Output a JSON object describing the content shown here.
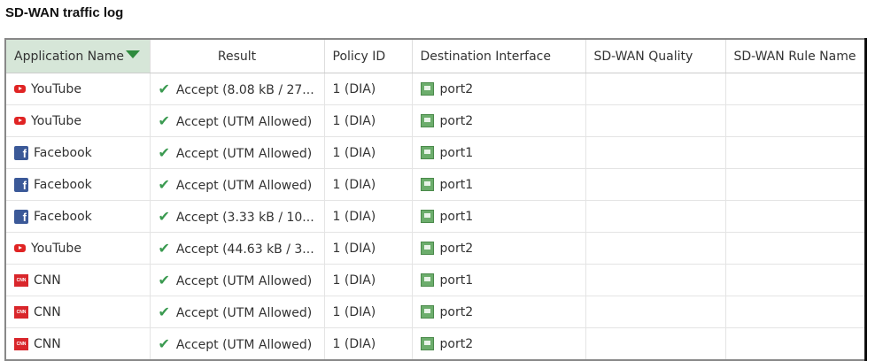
{
  "title": "SD-WAN traffic log",
  "columns": [
    "Application Name",
    "Result",
    "Policy ID",
    "Destination Interface",
    "SD-WAN Quality",
    "SD-WAN Rule Name"
  ],
  "rows": [
    {
      "app": "YouTube",
      "icon": "youtube-icon",
      "result": "Accept (8.08 kB / 27...",
      "policy": "1 (DIA)",
      "iface": "port2",
      "quality": "",
      "rule": ""
    },
    {
      "app": "YouTube",
      "icon": "youtube-icon",
      "result": "Accept (UTM Allowed)",
      "policy": "1 (DIA)",
      "iface": "port2",
      "quality": "",
      "rule": ""
    },
    {
      "app": "Facebook",
      "icon": "facebook-icon",
      "result": "Accept (UTM Allowed)",
      "policy": "1 (DIA)",
      "iface": "port1",
      "quality": "",
      "rule": ""
    },
    {
      "app": "Facebook",
      "icon": "facebook-icon",
      "result": "Accept (UTM Allowed)",
      "policy": "1 (DIA)",
      "iface": "port1",
      "quality": "",
      "rule": ""
    },
    {
      "app": "Facebook",
      "icon": "facebook-icon",
      "result": "Accept (3.33 kB / 10...",
      "policy": "1 (DIA)",
      "iface": "port1",
      "quality": "",
      "rule": ""
    },
    {
      "app": "YouTube",
      "icon": "youtube-icon",
      "result": "Accept (44.63 kB / 3...",
      "policy": "1 (DIA)",
      "iface": "port2",
      "quality": "",
      "rule": ""
    },
    {
      "app": "CNN",
      "icon": "cnn-icon",
      "result": "Accept (UTM Allowed)",
      "policy": "1 (DIA)",
      "iface": "port1",
      "quality": "",
      "rule": ""
    },
    {
      "app": "CNN",
      "icon": "cnn-icon",
      "result": "Accept (UTM Allowed)",
      "policy": "1 (DIA)",
      "iface": "port2",
      "quality": "",
      "rule": ""
    },
    {
      "app": "CNN",
      "icon": "cnn-icon",
      "result": "Accept (UTM Allowed)",
      "policy": "1 (DIA)",
      "iface": "port2",
      "quality": "",
      "rule": ""
    }
  ],
  "colors": {
    "filter": "#2e8b3e",
    "accept_check": "#3a9a50",
    "selected_header": "#d6e6d8"
  }
}
